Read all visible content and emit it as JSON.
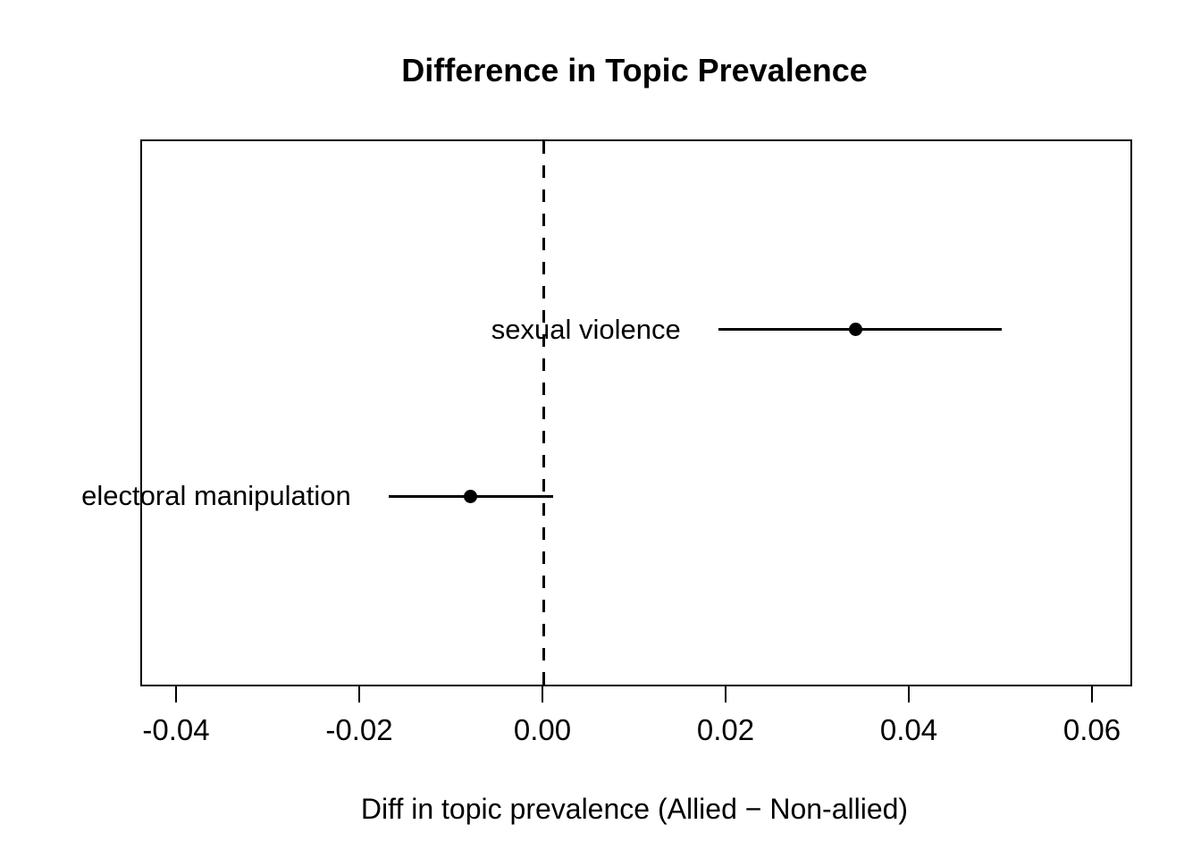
{
  "figure": {
    "background_color": "#ffffff",
    "foreground_color": "#000000"
  },
  "chart_data": {
    "type": "scatter",
    "variant": "dot-and-whisker-ci",
    "title": "Difference in Topic Prevalence",
    "xlabel": "Diff in topic prevalence (Allied − Non-allied)",
    "ylabel": "",
    "xlim": [
      -0.0439,
      0.064
    ],
    "x_ticks": [
      -0.04,
      -0.02,
      0,
      0.02,
      0.04,
      0.06
    ],
    "x_tick_labels": [
      "-0.04",
      "-0.02",
      "0.00",
      "0.02",
      "0.04",
      "0.06"
    ],
    "reference_line_x": 0,
    "reference_line_style": "dashed",
    "grid": false,
    "legend": "none",
    "points": [
      {
        "label": "sexual violence",
        "estimate": 0.034,
        "ci_lower": 0.019,
        "ci_upper": 0.05,
        "y_frac": 0.347
      },
      {
        "label": "electoral manipulation",
        "estimate": -0.008,
        "ci_lower": -0.017,
        "ci_upper": 0.001,
        "y_frac": 0.653
      }
    ]
  }
}
